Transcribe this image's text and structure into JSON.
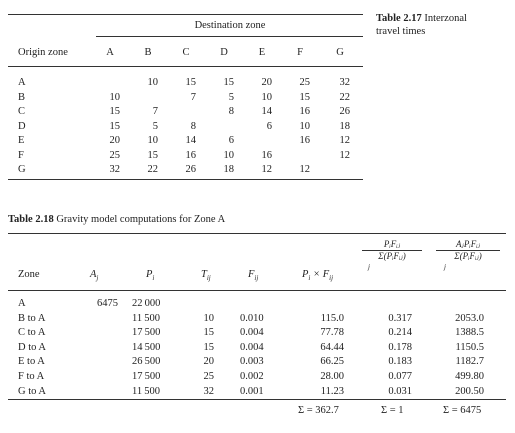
{
  "table1": {
    "caption_number": "Table 2.17",
    "caption_text_line1": "Interzonal",
    "caption_text_line2": "travel times",
    "dest_header": "Destination zone",
    "origin_header": "Origin zone",
    "columns": [
      "A",
      "B",
      "C",
      "D",
      "E",
      "F",
      "G"
    ],
    "rows": [
      {
        "zone": "A",
        "cells": [
          "",
          "10",
          "15",
          "15",
          "20",
          "25",
          "32"
        ]
      },
      {
        "zone": "B",
        "cells": [
          "10",
          "",
          "7",
          "5",
          "10",
          "15",
          "22"
        ]
      },
      {
        "zone": "C",
        "cells": [
          "15",
          "7",
          "",
          "8",
          "14",
          "16",
          "26"
        ]
      },
      {
        "zone": "D",
        "cells": [
          "15",
          "5",
          "8",
          "",
          "6",
          "10",
          "18"
        ]
      },
      {
        "zone": "E",
        "cells": [
          "20",
          "10",
          "14",
          "6",
          "",
          "16",
          "12"
        ]
      },
      {
        "zone": "F",
        "cells": [
          "25",
          "15",
          "16",
          "10",
          "16",
          "",
          "12"
        ]
      },
      {
        "zone": "G",
        "cells": [
          "32",
          "22",
          "26",
          "18",
          "12",
          "12",
          ""
        ]
      }
    ]
  },
  "table2": {
    "caption_number": "Table 2.18",
    "caption_text": "Gravity model computations for Zone A",
    "headers": {
      "zone": "Zone",
      "A": "A",
      "A_sub": "j",
      "P": "P",
      "P_sub": "i",
      "T": "T",
      "T_sub": "ij",
      "F": "F",
      "F_sub": "ij",
      "PxF": "P",
      "PxF_sub1": "i",
      "PxF_times": " × F",
      "PxF_sub2": "ij",
      "ratio_num": "PᵢFᵢⱼ",
      "ratio_den": "Σ(PᵢFᵢⱼ)",
      "ratio_under": "j",
      "alloc_num": "AⱼPᵢFᵢⱼ",
      "alloc_den": "Σ(PᵢFᵢⱼ)",
      "alloc_under": "j"
    },
    "rows": [
      {
        "zone": "A",
        "Aj": "6475",
        "Pi": "22 000",
        "Tij": "",
        "Fij": "",
        "PF": "",
        "ratio": "",
        "alloc": ""
      },
      {
        "zone": "B to A",
        "Aj": "",
        "Pi": "11 500",
        "Tij": "10",
        "Fij": "0.010",
        "PF": "115.0",
        "ratio": "0.317",
        "alloc": "2053.0"
      },
      {
        "zone": "C to A",
        "Aj": "",
        "Pi": "17 500",
        "Tij": "15",
        "Fij": "0.004",
        "PF": "77.78",
        "ratio": "0.214",
        "alloc": "1388.5"
      },
      {
        "zone": "D to A",
        "Aj": "",
        "Pi": "14 500",
        "Tij": "15",
        "Fij": "0.004",
        "PF": "64.44",
        "ratio": "0.178",
        "alloc": "1150.5"
      },
      {
        "zone": "E to A",
        "Aj": "",
        "Pi": "26 500",
        "Tij": "20",
        "Fij": "0.003",
        "PF": "66.25",
        "ratio": "0.183",
        "alloc": "1182.7"
      },
      {
        "zone": "F to A",
        "Aj": "",
        "Pi": "17 500",
        "Tij": "25",
        "Fij": "0.002",
        "PF": "28.00",
        "ratio": "0.077",
        "alloc": "499.80"
      },
      {
        "zone": "G to A",
        "Aj": "",
        "Pi": "11 500",
        "Tij": "32",
        "Fij": "0.001",
        "PF": "11.23",
        "ratio": "0.031",
        "alloc": "200.50"
      }
    ],
    "totals": {
      "PF": "Σ = 362.7",
      "ratio": "Σ = 1",
      "alloc": "Σ = 6475"
    }
  }
}
